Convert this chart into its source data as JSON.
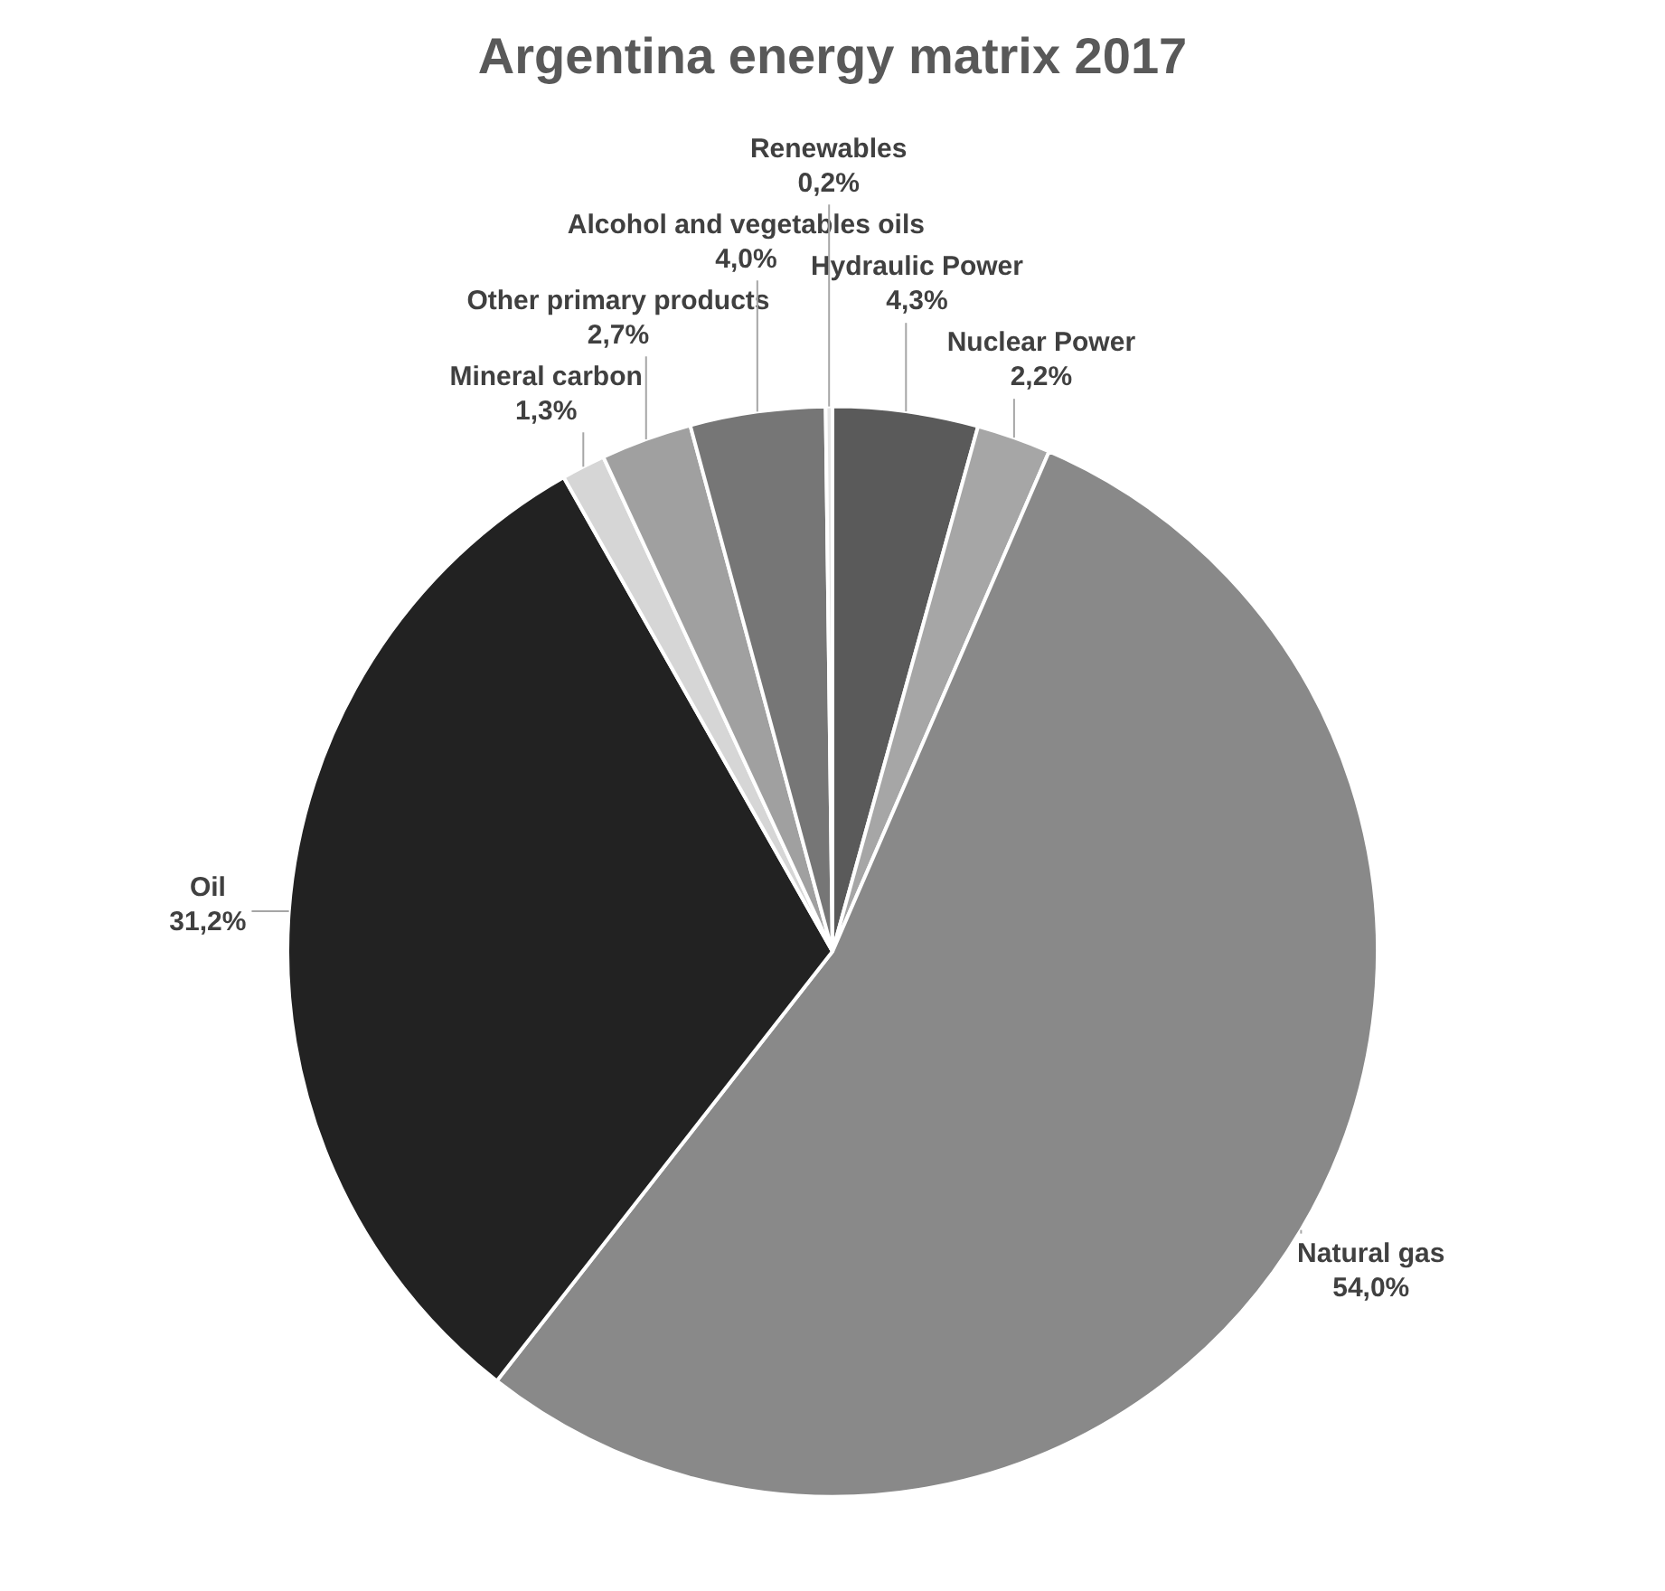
{
  "chart_data": {
    "type": "pie",
    "title": "Argentina energy matrix 2017",
    "categories": [
      "Hydraulic Power",
      "Nuclear Power",
      "Natural gas",
      "Oil",
      "Mineral carbon",
      "Other primary products",
      "Alcohol and vegetables oils",
      "Renewables"
    ],
    "values": [
      4.3,
      2.2,
      54.0,
      31.2,
      1.3,
      2.7,
      4.0,
      0.2
    ],
    "value_labels": [
      "4,3%",
      "2,2%",
      "54,0%",
      "31,2%",
      "1,3%",
      "2,7%",
      "4,0%",
      "0,2%"
    ],
    "colors": [
      "#5a5a5a",
      "#a6a6a6",
      "#898989",
      "#222222",
      "#d6d6d6",
      "#a0a0a0",
      "#767676",
      "#e6e6e6"
    ],
    "legend": false
  }
}
